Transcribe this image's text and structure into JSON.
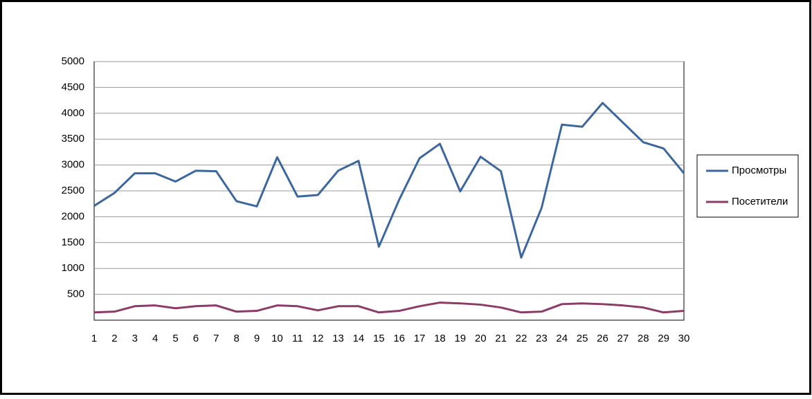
{
  "chart_data": {
    "type": "line",
    "categories": [
      "1",
      "2",
      "3",
      "4",
      "5",
      "6",
      "7",
      "8",
      "9",
      "10",
      "11",
      "12",
      "13",
      "14",
      "15",
      "16",
      "17",
      "18",
      "19",
      "20",
      "21",
      "22",
      "23",
      "24",
      "25",
      "26",
      "27",
      "28",
      "29",
      "30"
    ],
    "series": [
      {
        "name": "Просмотры",
        "color": "#3b679e",
        "values": [
          2210,
          2460,
          2840,
          2840,
          2680,
          2890,
          2880,
          2300,
          2200,
          3150,
          2390,
          2420,
          2890,
          3080,
          1420,
          2330,
          3130,
          3410,
          2490,
          3160,
          2880,
          1210,
          2170,
          3780,
          3740,
          4200,
          3820,
          3440,
          3320,
          2840
        ]
      },
      {
        "name": "Посетители",
        "color": "#8c3a66",
        "values": [
          150,
          165,
          270,
          285,
          230,
          270,
          285,
          165,
          180,
          285,
          270,
          190,
          270,
          270,
          150,
          180,
          270,
          340,
          325,
          300,
          245,
          150,
          165,
          310,
          325,
          310,
          285,
          245,
          150,
          180
        ]
      }
    ],
    "ylim": [
      0,
      5000
    ],
    "yticks": [
      500,
      1000,
      1500,
      2000,
      2500,
      3000,
      3500,
      4000,
      4500,
      5000
    ],
    "grid": true,
    "legend": "right"
  }
}
